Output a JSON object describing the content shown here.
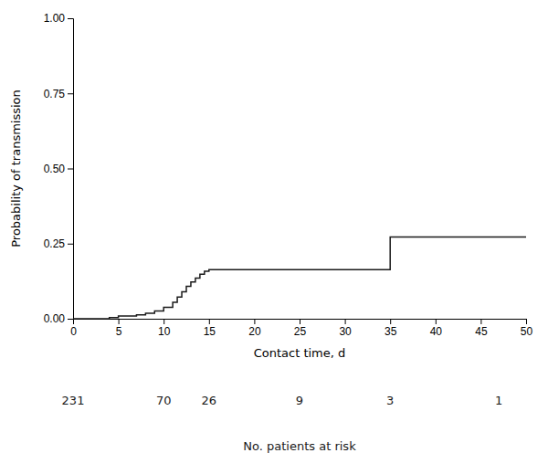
{
  "chart_data": {
    "type": "line",
    "xlabel": "Contact time, d",
    "ylabel": "Probability of transmission",
    "xlim": [
      0,
      50
    ],
    "ylim": [
      0,
      1.0
    ],
    "xticks": [
      0,
      5,
      10,
      15,
      20,
      25,
      30,
      35,
      40,
      45,
      50
    ],
    "yticks": [
      {
        "value": 0,
        "label": "0.00"
      },
      0.25,
      {
        "value": 0.5,
        "label": "0.50"
      },
      0.75,
      {
        "value": 1.0,
        "label": "1.00"
      }
    ],
    "color": "#1a1a1a",
    "grid": false,
    "x": [
      0,
      4,
      4,
      5,
      5,
      7,
      7,
      8,
      8,
      9,
      9,
      10,
      10,
      11,
      11,
      11.5,
      11.5,
      12,
      12,
      12.5,
      12.5,
      13,
      13,
      13.5,
      13.5,
      14,
      14,
      14.5,
      14.5,
      15,
      15,
      35,
      35,
      50
    ],
    "values": [
      0,
      0,
      0.004,
      0.004,
      0.009,
      0.009,
      0.013,
      0.013,
      0.018,
      0.018,
      0.026,
      0.026,
      0.038,
      0.038,
      0.055,
      0.055,
      0.072,
      0.072,
      0.09,
      0.09,
      0.108,
      0.108,
      0.122,
      0.122,
      0.135,
      0.135,
      0.148,
      0.148,
      0.158,
      0.158,
      0.163,
      0.163,
      0.272,
      0.272
    ],
    "at_risk": {
      "label": "No. patients at risk",
      "x": [
        0,
        10,
        15,
        25,
        35,
        47
      ],
      "values": [
        231,
        70,
        26,
        9,
        3,
        1
      ]
    }
  }
}
